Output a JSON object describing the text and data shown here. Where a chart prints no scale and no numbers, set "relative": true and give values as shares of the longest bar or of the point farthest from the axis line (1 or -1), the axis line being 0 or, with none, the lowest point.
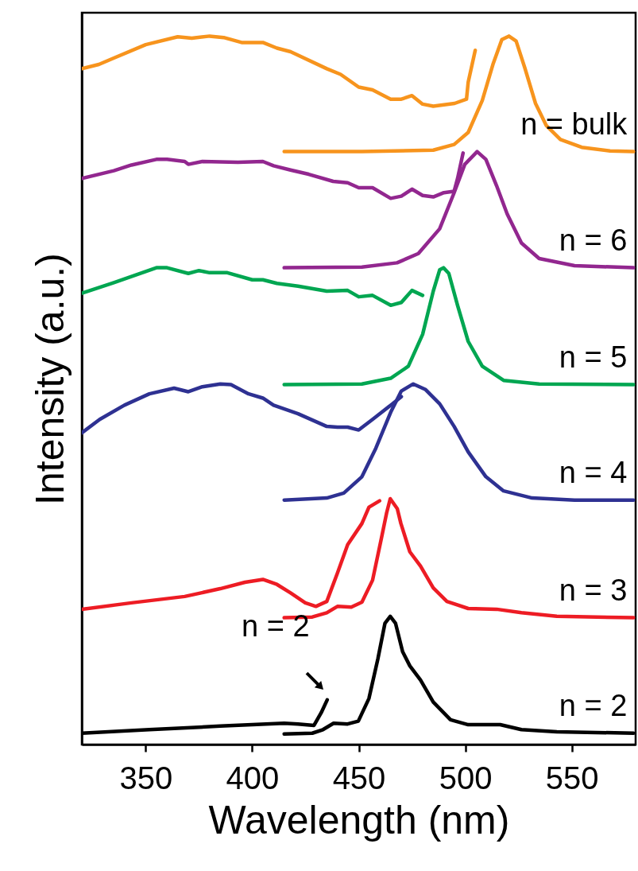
{
  "chart_data": {
    "type": "line",
    "xlabel": "Wavelength (nm)",
    "ylabel": "Intensity (a.u.)",
    "relative": true,
    "xlim": [
      320,
      580
    ],
    "xticks": [
      350,
      400,
      450,
      500,
      550
    ],
    "grid": false,
    "marker": "none",
    "line_style": "solid",
    "annotations": [
      {
        "text": "n = 2",
        "x": 435.2,
        "y": 0.063
      }
    ],
    "series": [
      {
        "color": "#f7941d",
        "x": [
          320,
          328,
          335,
          350,
          365,
          371.6,
          380,
          386.6,
          395,
          405,
          411.6,
          418,
          435,
          441.5,
          450,
          456.5,
          465,
          470,
          475,
          480,
          485,
          495,
          500.6,
          501.4,
          504.7
        ],
        "values": [
          0.954,
          0.96,
          0.969,
          0.988,
          0.999,
          0.997,
          1.0,
          0.998,
          0.991,
          0.991,
          0.983,
          0.978,
          0.954,
          0.946,
          0.928,
          0.924,
          0.911,
          0.911,
          0.916,
          0.904,
          0.901,
          0.905,
          0.911,
          0.935,
          0.98
        ]
      },
      {
        "name": "n = bulk",
        "color": "#f7941d",
        "x": [
          415,
          451.5,
          485,
          494.8,
          501.4,
          508,
          513,
          517.2,
          520.5,
          523.9,
          528,
          533,
          538,
          544.7,
          554.7,
          568,
          579
        ],
        "values": [
          0.837,
          0.837,
          0.839,
          0.847,
          0.864,
          0.909,
          0.96,
          0.995,
          1.0,
          0.993,
          0.955,
          0.905,
          0.874,
          0.854,
          0.843,
          0.838,
          0.837
        ]
      },
      {
        "color": "#92278f",
        "x": [
          320,
          335,
          343.3,
          355,
          360,
          368.3,
          370,
          376.6,
          393.3,
          405,
          410,
          418,
          426.5,
          438,
          444.8,
          450,
          456.5,
          465,
          470,
          475,
          480,
          485,
          490,
          494.8,
          496.4,
          499
        ],
        "values": [
          0.799,
          0.81,
          0.818,
          0.826,
          0.826,
          0.823,
          0.819,
          0.823,
          0.822,
          0.823,
          0.817,
          0.811,
          0.805,
          0.795,
          0.793,
          0.786,
          0.786,
          0.771,
          0.774,
          0.784,
          0.775,
          0.773,
          0.779,
          0.781,
          0.799,
          0.835
        ]
      },
      {
        "name": "n = 6",
        "color": "#92278f",
        "x": [
          415,
          451.5,
          468,
          478,
          488,
          494.8,
          499.8,
          505.6,
          509.7,
          514.7,
          519.7,
          526.4,
          534.7,
          551.3,
          579
        ],
        "values": [
          0.673,
          0.674,
          0.68,
          0.693,
          0.728,
          0.779,
          0.819,
          0.837,
          0.826,
          0.789,
          0.749,
          0.708,
          0.686,
          0.676,
          0.673
        ]
      },
      {
        "color": "#00a651",
        "x": [
          320,
          335,
          355,
          360,
          370,
          375,
          380,
          388.3,
          400,
          405,
          411.6,
          421.5,
          435,
          444.8,
          450,
          456.5,
          465,
          470,
          475,
          480
        ],
        "values": [
          0.637,
          0.652,
          0.673,
          0.673,
          0.665,
          0.669,
          0.666,
          0.666,
          0.656,
          0.656,
          0.651,
          0.647,
          0.64,
          0.641,
          0.632,
          0.634,
          0.62,
          0.624,
          0.641,
          0.634
        ]
      },
      {
        "name": "n = 5",
        "color": "#00a651",
        "x": [
          415,
          451.5,
          465,
          473.3,
          480,
          485,
          488,
          489.8,
          492.3,
          496.4,
          501.4,
          508,
          518,
          534.7,
          579
        ],
        "values": [
          0.508,
          0.509,
          0.517,
          0.534,
          0.579,
          0.64,
          0.67,
          0.673,
          0.665,
          0.62,
          0.569,
          0.534,
          0.514,
          0.509,
          0.508
        ]
      },
      {
        "color": "#2e3192",
        "x": [
          320,
          328.4,
          340,
          351.7,
          363.3,
          370,
          376.6,
          385,
          390,
          398.3,
          405,
          410,
          421.5,
          435,
          440,
          444.8,
          450,
          456.5,
          465,
          470
        ],
        "values": [
          0.44,
          0.459,
          0.479,
          0.495,
          0.503,
          0.498,
          0.505,
          0.509,
          0.508,
          0.495,
          0.489,
          0.479,
          0.467,
          0.449,
          0.448,
          0.448,
          0.444,
          0.459,
          0.479,
          0.491
        ]
      },
      {
        "name": "n = 4",
        "color": "#2e3192",
        "x": [
          415,
          435,
          443,
          451.5,
          458,
          465,
          470,
          475.6,
          481.4,
          488,
          494.8,
          501.4,
          509.7,
          518,
          531.4,
          551.3,
          579
        ],
        "values": [
          0.345,
          0.348,
          0.355,
          0.378,
          0.418,
          0.469,
          0.499,
          0.509,
          0.501,
          0.481,
          0.449,
          0.413,
          0.378,
          0.358,
          0.348,
          0.345,
          0.345
        ]
      },
      {
        "color": "#ed1c24",
        "x": [
          320,
          343.3,
          368.3,
          385,
          396.6,
          405,
          411.6,
          418,
          424.9,
          429.9,
          435,
          440,
          444.8,
          451.5,
          454.8,
          459.8
        ],
        "values": [
          0.191,
          0.2,
          0.209,
          0.22,
          0.229,
          0.233,
          0.226,
          0.214,
          0.2,
          0.195,
          0.202,
          0.242,
          0.282,
          0.312,
          0.335,
          0.344
        ]
      },
      {
        "name": "n = 3",
        "color": "#ed1c24",
        "x": [
          415,
          428.2,
          435,
          440,
          446.5,
          451.5,
          456.5,
          460.7,
          463.1,
          464.8,
          468.1,
          469.8,
          474,
          479,
          485,
          491.4,
          501.4,
          514.7,
          526.4,
          543,
          579
        ],
        "values": [
          0.179,
          0.18,
          0.186,
          0.195,
          0.194,
          0.201,
          0.232,
          0.292,
          0.327,
          0.347,
          0.333,
          0.312,
          0.272,
          0.252,
          0.221,
          0.202,
          0.192,
          0.191,
          0.186,
          0.181,
          0.179
        ]
      },
      {
        "color": "#000000",
        "x": [
          320,
          351.7,
          385,
          415,
          421.5,
          429,
          432.4,
          435.2
        ],
        "values": [
          0.016,
          0.021,
          0.026,
          0.03,
          0.029,
          0.027,
          0.045,
          0.063
        ]
      },
      {
        "name": "n = 2",
        "color": "#000000",
        "x": [
          415,
          428.2,
          433.2,
          438.2,
          444.8,
          449.8,
          454.8,
          459,
          462.3,
          464.8,
          467.3,
          470.6,
          474,
          479,
          485,
          493.1,
          501.4,
          516.4,
          526.4,
          543,
          579
        ],
        "values": [
          0.015,
          0.016,
          0.021,
          0.03,
          0.029,
          0.033,
          0.065,
          0.121,
          0.171,
          0.181,
          0.171,
          0.131,
          0.111,
          0.091,
          0.06,
          0.035,
          0.028,
          0.028,
          0.021,
          0.018,
          0.016
        ]
      }
    ]
  }
}
